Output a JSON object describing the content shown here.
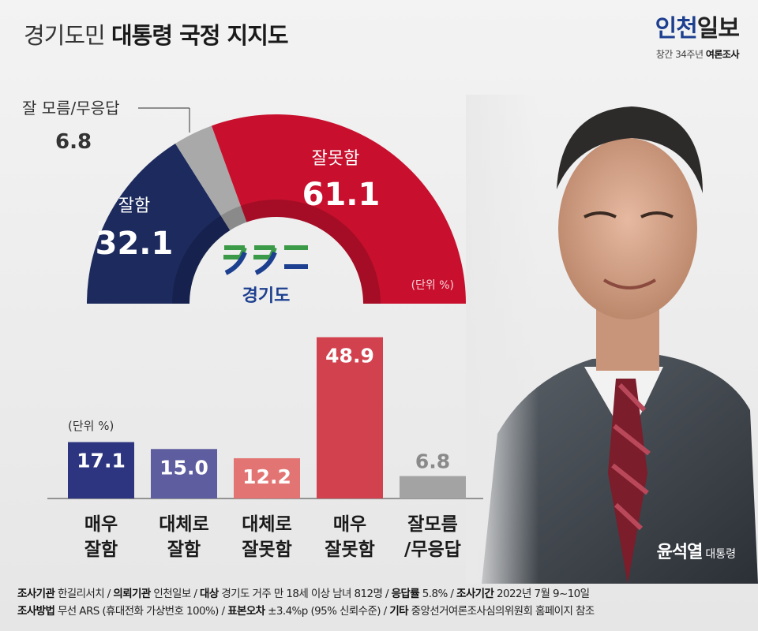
{
  "header": {
    "title_light": "경기도민",
    "title_bold": "대통령 국정 지지도"
  },
  "brand": {
    "logo_part1": "인천",
    "logo_part2": "일보",
    "tag_light": "창간 34주년",
    "tag_bold": "여론조사"
  },
  "region_logo_text": "경기도",
  "person": {
    "name": "윤석열",
    "role": "대통령"
  },
  "chart_data": [
    {
      "type": "pie",
      "subtype": "semicircle-donut",
      "unit_label": "(단위 %)",
      "slices": [
        {
          "label": "잘함",
          "value": 32.1,
          "color": "#1c2a5e"
        },
        {
          "label": "잘 모름/무응답",
          "value": 6.8,
          "color": "#a9a9a9"
        },
        {
          "label": "잘못함",
          "value": 61.1,
          "color": "#c8102e"
        }
      ]
    },
    {
      "type": "bar",
      "unit_label": "(단위 %)",
      "categories": [
        {
          "line1": "매우",
          "line2": "잘함"
        },
        {
          "line1": "대체로",
          "line2": "잘함"
        },
        {
          "line1": "대체로",
          "line2": "잘못함"
        },
        {
          "line1": "매우",
          "line2": "잘못함"
        },
        {
          "line1": "잘모름",
          "line2": "/무응답"
        }
      ],
      "values": [
        17.1,
        15.0,
        12.2,
        48.9,
        6.8
      ],
      "value_labels": [
        "17.1",
        "15.0",
        "12.2",
        "48.9",
        "6.8"
      ],
      "colors": [
        "#2e3580",
        "#5e5d9f",
        "#e27573",
        "#d1424e",
        "#a3a3a3"
      ],
      "label_colors": [
        "#ffffff",
        "#ffffff",
        "#ffffff",
        "#ffffff",
        "#8a8a8a"
      ],
      "ylim": [
        0,
        55
      ]
    }
  ],
  "footer": {
    "line1": [
      {
        "label": "조사기관",
        "value": "한길리서치"
      },
      {
        "label": "의뢰기관",
        "value": "인천일보"
      },
      {
        "label": "대상",
        "value": "경기도 거주 만 18세 이상 남녀 812명"
      },
      {
        "label": "응답률",
        "value": "5.8%"
      },
      {
        "label": "조사기간",
        "value": "2022년 7월 9~10일"
      }
    ],
    "line2": [
      {
        "label": "조사방법",
        "value": "무선 ARS (휴대전화 가상번호 100%)"
      },
      {
        "label": "표본오차",
        "value": "±3.4%p (95% 신뢰수준)"
      },
      {
        "label": "기타",
        "value": "중앙선거여론조사심의위원회 홈페이지 참조"
      }
    ]
  }
}
